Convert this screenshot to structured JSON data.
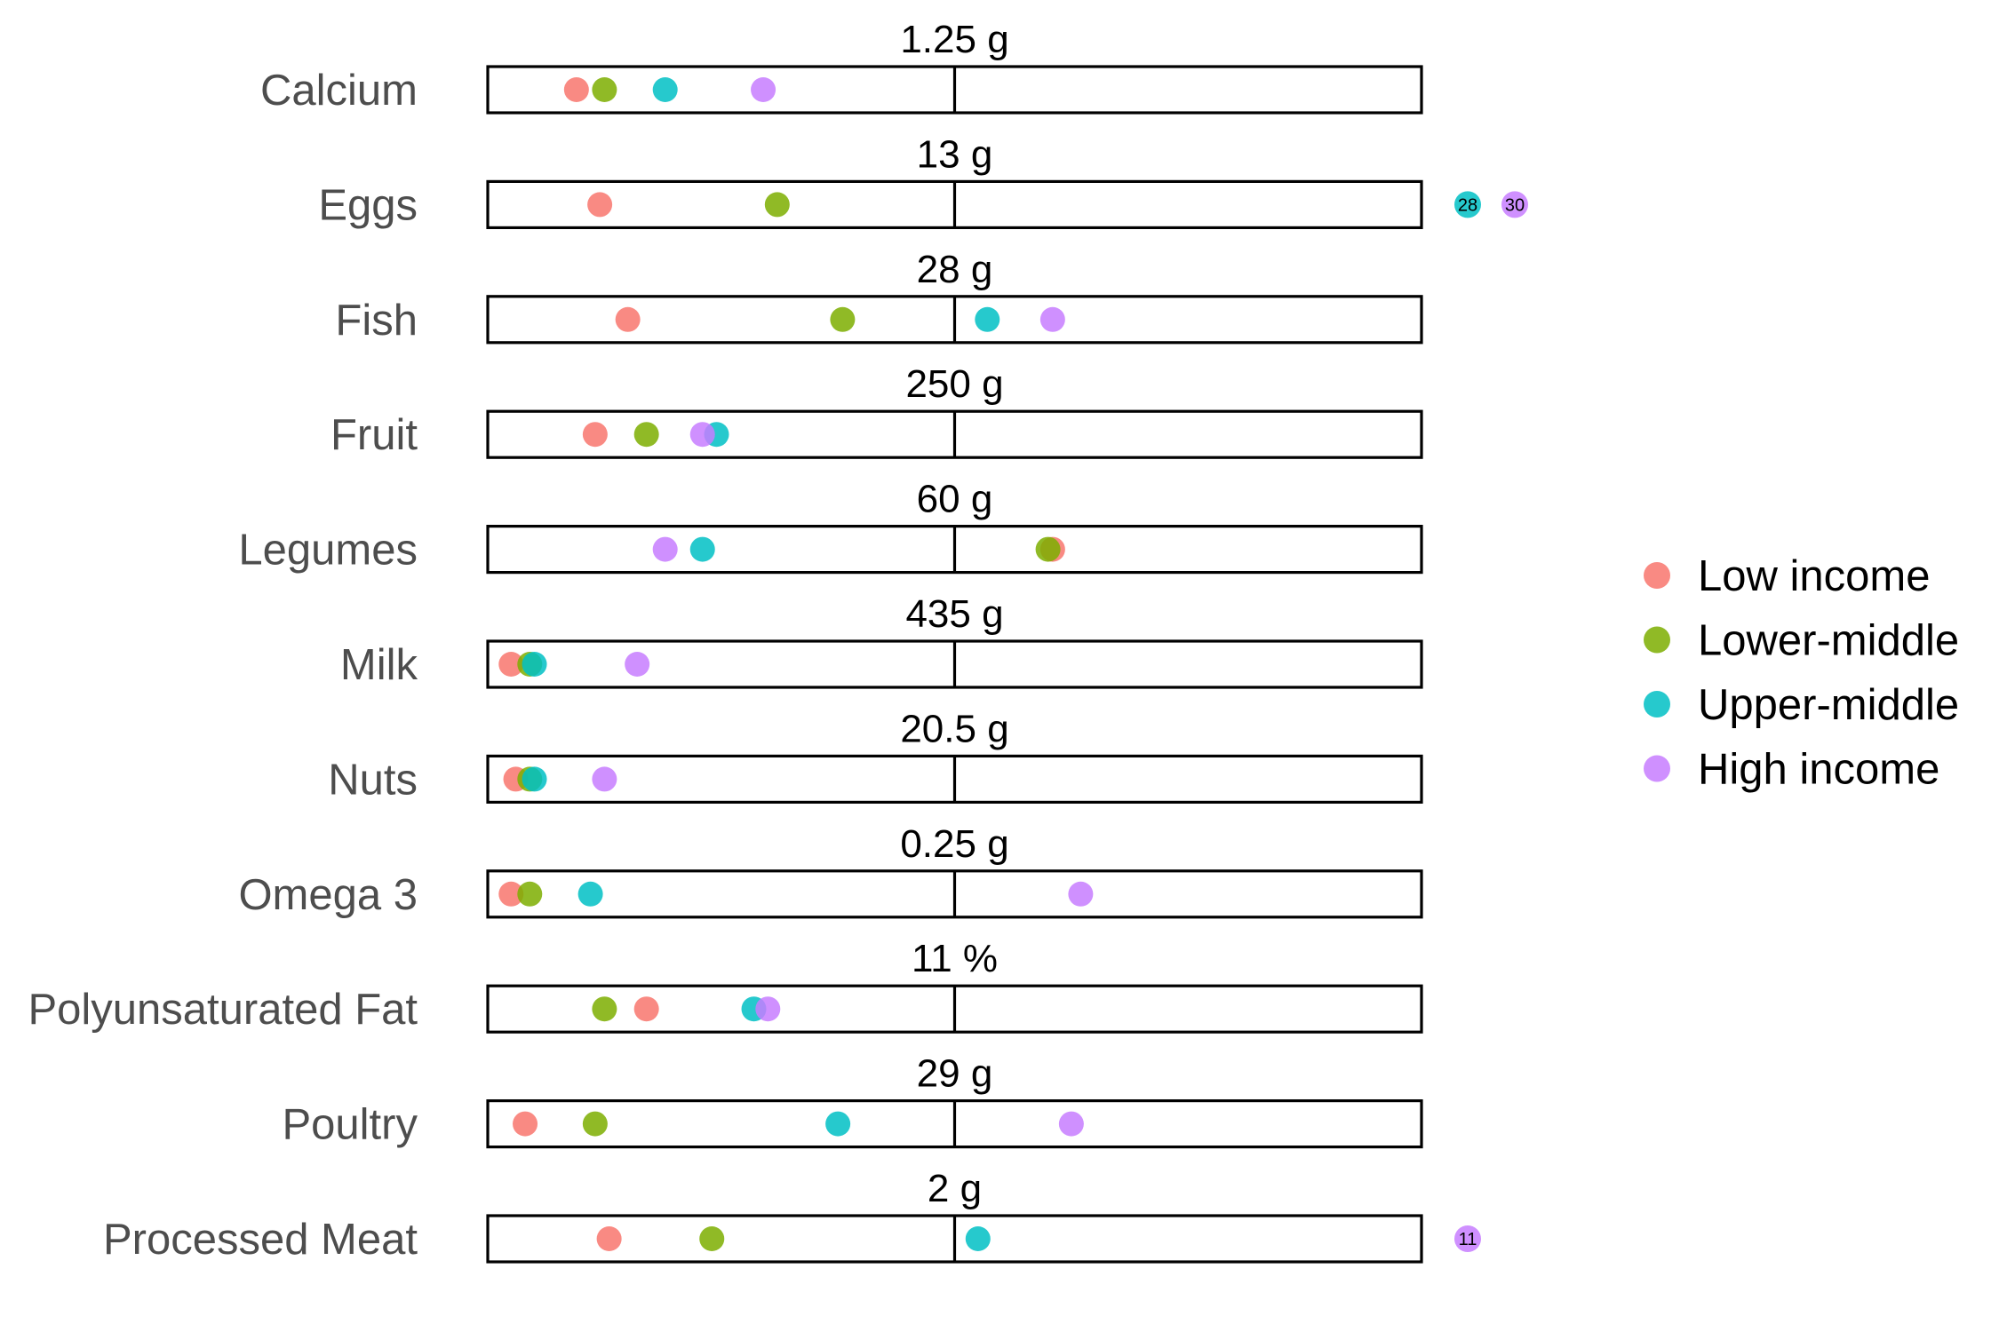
{
  "chart_data": {
    "type": "scatter",
    "description_units": "Each row shows intake as a multiple of the reference amount (1 = reference, bar spans 0 to 2).",
    "categories": [
      "Calcium",
      "Eggs",
      "Fish",
      "Fruit",
      "Legumes",
      "Milk",
      "Nuts",
      "Omega 3",
      "Polyunsaturated Fat",
      "Poultry",
      "Processed Meat"
    ],
    "reference_labels": [
      "1.25 g",
      "13 g",
      "28 g",
      "250 g",
      "60 g",
      "435 g",
      "20.5 g",
      "0.25 g",
      "11 %",
      "29 g",
      "2 g"
    ],
    "xlim": [
      0,
      2
    ],
    "series": [
      {
        "name": "Low income",
        "color": "#F8766D",
        "values": [
          0.19,
          0.24,
          0.3,
          0.23,
          1.21,
          0.05,
          0.06,
          0.05,
          0.34,
          0.08,
          0.26
        ]
      },
      {
        "name": "Lower-middle",
        "color": "#7CAE00",
        "values": [
          0.25,
          0.62,
          0.76,
          0.34,
          1.2,
          0.09,
          0.09,
          0.09,
          0.25,
          0.23,
          0.48
        ]
      },
      {
        "name": "Upper-middle",
        "color": "#00BFC4",
        "values": [
          0.38,
          28,
          1.07,
          0.49,
          0.46,
          0.1,
          0.1,
          0.22,
          0.57,
          0.75,
          1.05
        ]
      },
      {
        "name": "High income",
        "color": "#C77CFF",
        "values": [
          0.59,
          30,
          1.21,
          0.46,
          0.38,
          0.32,
          0.25,
          1.27,
          0.6,
          1.25,
          11
        ]
      }
    ],
    "overflow_labels": [
      {
        "row": "Eggs",
        "series": "Upper-middle",
        "label": "28"
      },
      {
        "row": "Eggs",
        "series": "High income",
        "label": "30"
      },
      {
        "row": "Processed Meat",
        "series": "High income",
        "label": "11"
      }
    ],
    "legend": {
      "position": "right",
      "entries": [
        "Low income",
        "Lower-middle",
        "Upper-middle",
        "High income"
      ]
    },
    "grid": false
  }
}
